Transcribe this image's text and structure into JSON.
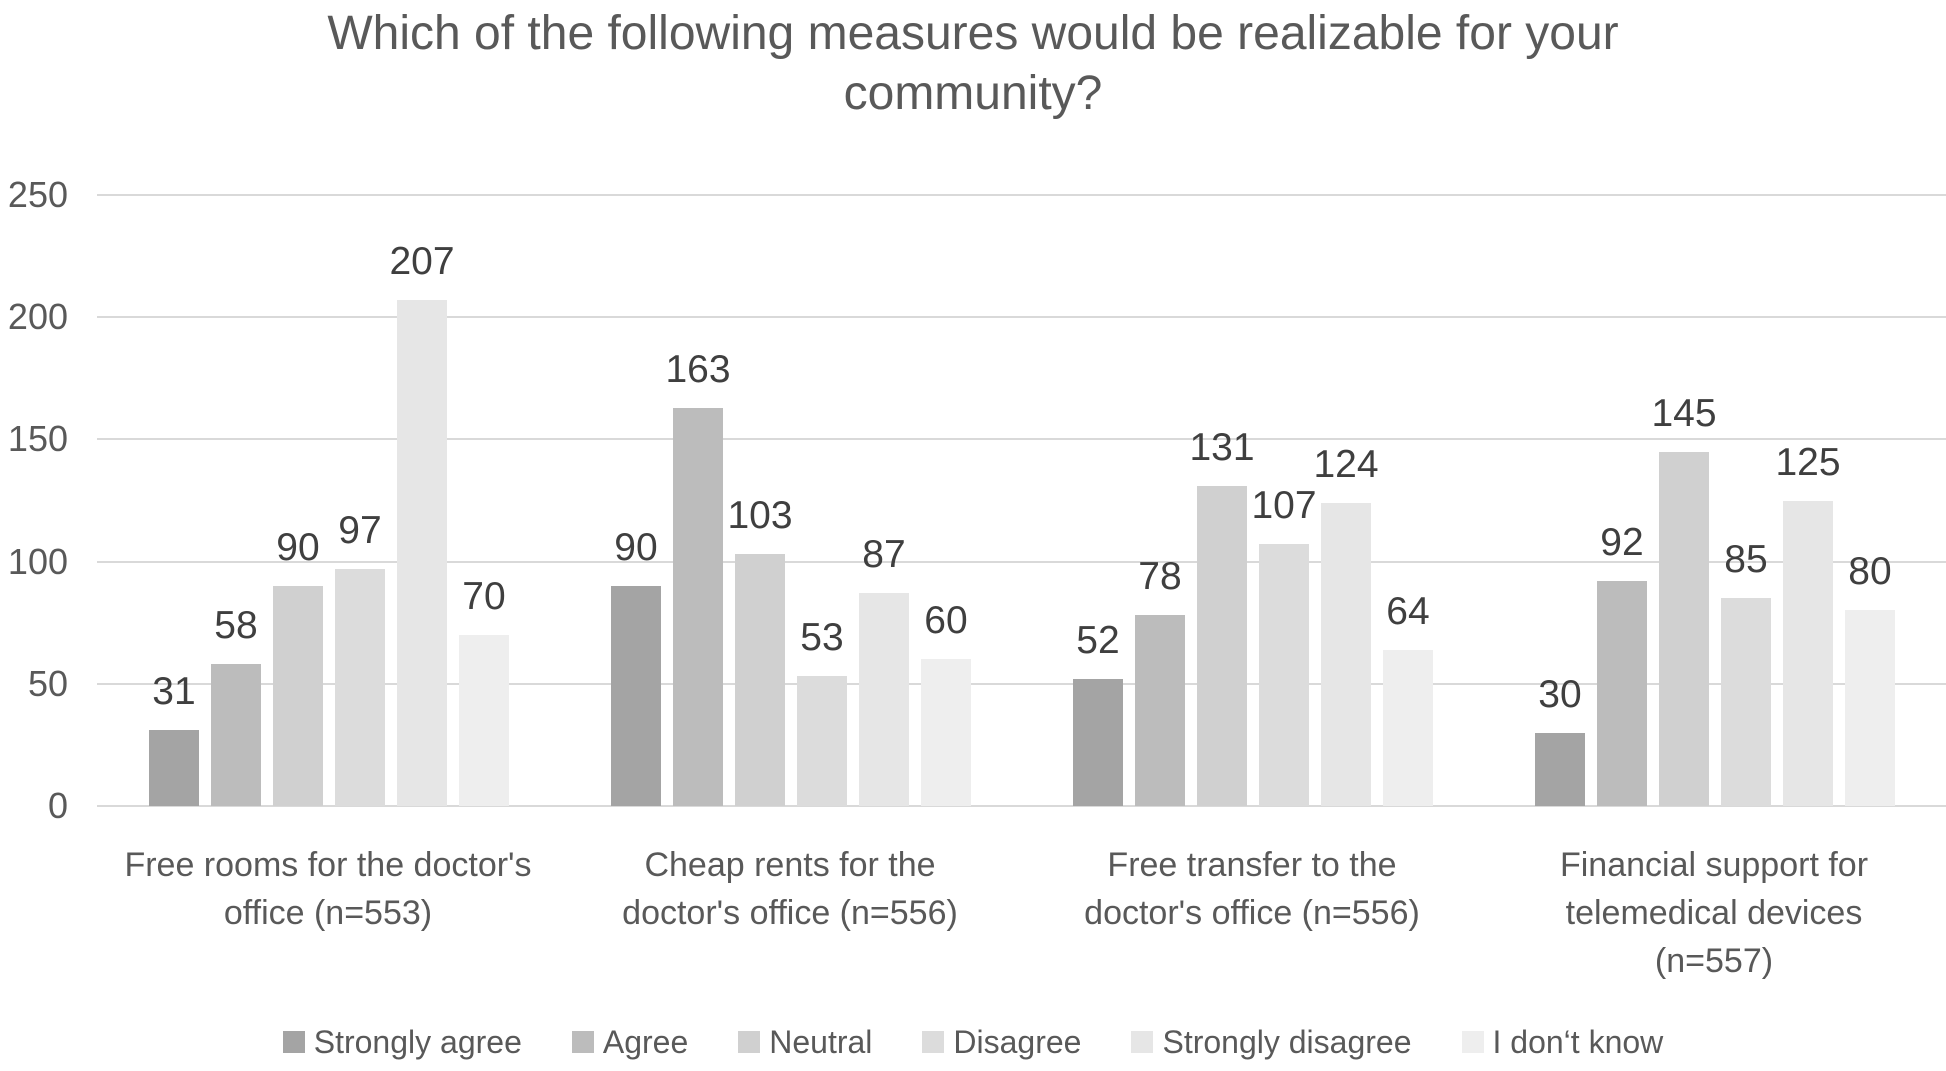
{
  "chart_data": {
    "type": "bar",
    "title": "Which of the following measures would be realizable for your community?",
    "categories": [
      [
        "Free rooms for the doctor's",
        "office (n=553)"
      ],
      [
        "Cheap rents for the",
        "doctor's office (n=556)"
      ],
      [
        "Free transfer to the",
        "doctor's office (n=556)"
      ],
      [
        "Financial support for",
        "telemedical devices",
        "(n=557)"
      ]
    ],
    "categories_full": [
      "Free rooms for the doctor's office (n=553)",
      "Cheap rents for the doctor's office (n=556)",
      "Free transfer to the doctor's office (n=556)",
      "Financial support for telemedical devices (n=557)"
    ],
    "series": [
      {
        "name": "Strongly agree",
        "color": "#a4a4a4",
        "values": [
          31,
          90,
          52,
          30
        ]
      },
      {
        "name": "Agree",
        "color": "#bcbcbc",
        "values": [
          58,
          163,
          78,
          92
        ]
      },
      {
        "name": "Neutral",
        "color": "#d0d0d0",
        "values": [
          90,
          103,
          131,
          145
        ]
      },
      {
        "name": "Disagree",
        "color": "#dcdcdc",
        "values": [
          97,
          53,
          107,
          85
        ]
      },
      {
        "name": "Strongly disagree",
        "color": "#e6e6e6",
        "values": [
          207,
          87,
          124,
          125
        ]
      },
      {
        "name": "I don‘t know",
        "color": "#eeeeee",
        "values": [
          70,
          60,
          64,
          80
        ]
      }
    ],
    "ylim": [
      0,
      250
    ],
    "yticks": [
      0,
      50,
      100,
      150,
      200,
      250
    ],
    "grid": true,
    "legend_position": "bottom",
    "value_labels": true
  },
  "style": {
    "text_color": "#595959",
    "value_label_color": "#3f3f3f",
    "gridline_color": "#d9d9d9",
    "background": "#ffffff"
  }
}
